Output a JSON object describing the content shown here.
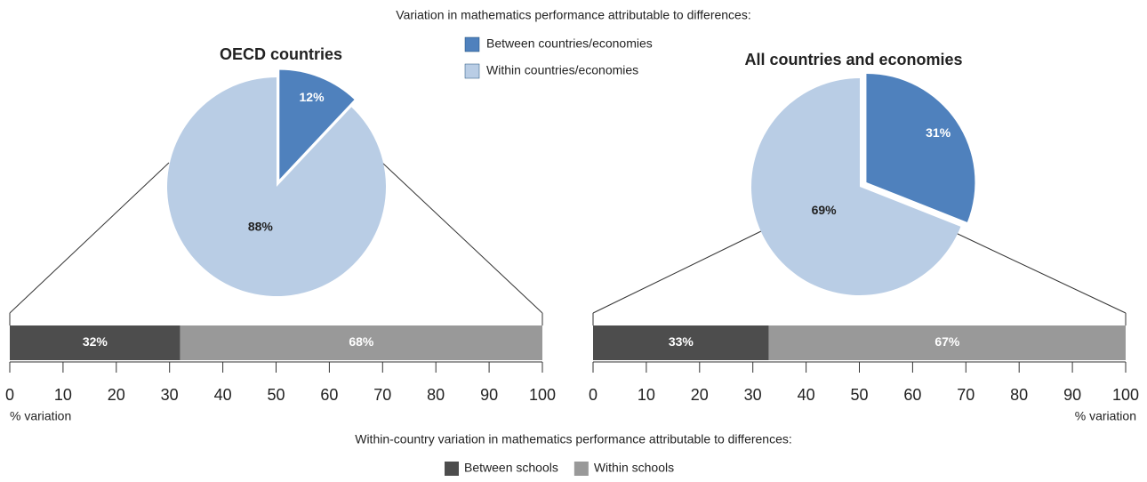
{
  "title": "Variation in mathematics performance attributable to differences:",
  "footer": "Within-country variation in mathematics performance attributable to differences:",
  "chart_data": [
    {
      "type": "pie",
      "title": "OECD countries",
      "categories": [
        "Between countries/economies",
        "Within countries/economies"
      ],
      "values": [
        12,
        88
      ],
      "value_labels": [
        "12%",
        "88%"
      ],
      "colors": [
        "#4f81bd",
        "#b9cde5"
      ]
    },
    {
      "type": "pie",
      "title": "All countries and economies",
      "values": [
        31,
        69
      ],
      "value_labels": [
        "31%",
        "69%"
      ],
      "colors": [
        "#4f81bd",
        "#b9cde5"
      ]
    },
    {
      "type": "stacked_bar",
      "xlabel": "% variation",
      "xlim": [
        0,
        100
      ],
      "xticks": [
        0,
        10,
        20,
        30,
        40,
        50,
        60,
        70,
        80,
        90,
        100
      ],
      "series": [
        {
          "name": "Between schools",
          "color": "#4d4d4d",
          "values": [
            32
          ],
          "value_labels": [
            "32%"
          ]
        },
        {
          "name": "Within schools",
          "color": "#999999",
          "values": [
            68
          ],
          "value_labels": [
            "68%"
          ]
        }
      ]
    },
    {
      "type": "stacked_bar",
      "xlabel": "% variation",
      "xlim": [
        0,
        100
      ],
      "xticks": [
        0,
        10,
        20,
        30,
        40,
        50,
        60,
        70,
        80,
        90,
        100
      ],
      "series": [
        {
          "color": "#4d4d4d",
          "values": [
            33
          ],
          "value_labels": [
            "33%"
          ]
        },
        {
          "color": "#999999",
          "values": [
            67
          ],
          "value_labels": [
            "67%"
          ]
        }
      ]
    }
  ]
}
